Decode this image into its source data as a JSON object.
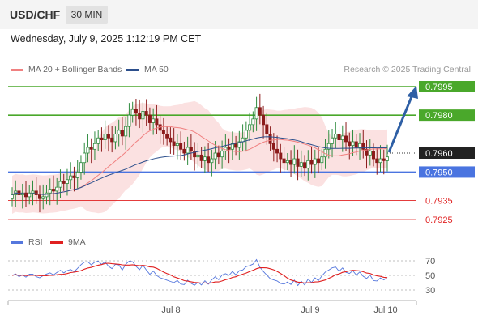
{
  "header": {
    "symbol": "USD/CHF",
    "timeframe": "30 MIN"
  },
  "datetime": "Wednesday, July 9, 2025 1:12:19 PM CET",
  "legend": {
    "ma20": {
      "label": "MA 20 + Bollinger Bands",
      "color": "#f08080"
    },
    "ma50": {
      "label": "MA 50",
      "color": "#2c4f8c"
    }
  },
  "credit": "Research © 2025 Trading Central",
  "rsi_legend": {
    "rsi": {
      "label": "RSI",
      "color": "#5577dd"
    },
    "ma": {
      "label": "9MA",
      "color": "#e02020"
    }
  },
  "colors": {
    "up": "#2e8b3e",
    "down": "#8b1a1a",
    "resistance": "#4aa82b",
    "support": "#4a74e0",
    "target": "#e02020",
    "arrow": "#2e5fa5",
    "band_fill": "#fadcdc"
  },
  "chart_data": {
    "type": "candlestick",
    "x_ticks": [
      "Jul 8",
      "Jul 9",
      "Jul 10"
    ],
    "y_range": [
      0.792,
      0.8
    ],
    "current_price": "0.7960",
    "levels": [
      {
        "label": "0.7995",
        "value": 0.7995,
        "kind": "resistance"
      },
      {
        "label": "0.7980",
        "value": 0.798,
        "kind": "resistance"
      },
      {
        "label": "0.7950",
        "value": 0.795,
        "kind": "support"
      },
      {
        "label": "0.7935",
        "value": 0.7935,
        "kind": "target"
      },
      {
        "label": "0.7925",
        "value": 0.7925,
        "kind": "target"
      }
    ],
    "close": [
      0.7938,
      0.794,
      0.7938,
      0.7939,
      0.7937,
      0.7939,
      0.794,
      0.7938,
      0.7936,
      0.7937,
      0.7939,
      0.7941,
      0.794,
      0.7942,
      0.7945,
      0.7944,
      0.7946,
      0.7948,
      0.7947,
      0.795,
      0.7955,
      0.796,
      0.7963,
      0.7962,
      0.7965,
      0.7968,
      0.7967,
      0.797,
      0.7968,
      0.7966,
      0.797,
      0.7972,
      0.7969,
      0.7974,
      0.798,
      0.7983,
      0.7981,
      0.7978,
      0.7982,
      0.798,
      0.7976,
      0.7978,
      0.7975,
      0.7972,
      0.797,
      0.7968,
      0.7966,
      0.7964,
      0.7965,
      0.7962,
      0.796,
      0.7963,
      0.7961,
      0.7958,
      0.7959,
      0.7956,
      0.7958,
      0.7955,
      0.7957,
      0.796,
      0.7958,
      0.7961,
      0.7963,
      0.7962,
      0.7965,
      0.7963,
      0.7966,
      0.7968,
      0.7972,
      0.7975,
      0.7978,
      0.7984,
      0.798,
      0.7975,
      0.797,
      0.7965,
      0.7962,
      0.796,
      0.7957,
      0.7955,
      0.7956,
      0.7954,
      0.7957,
      0.7953,
      0.7955,
      0.7952,
      0.7956,
      0.7954,
      0.7957,
      0.7955,
      0.7958,
      0.7962,
      0.7965,
      0.7968,
      0.797,
      0.7967,
      0.7969,
      0.7966,
      0.7964,
      0.7966,
      0.7963,
      0.7965,
      0.7962,
      0.7959,
      0.7961,
      0.7957,
      0.7955,
      0.7957,
      0.7956,
      0.7958
    ],
    "rsi": {
      "levels": [
        70,
        50,
        30
      ]
    }
  }
}
